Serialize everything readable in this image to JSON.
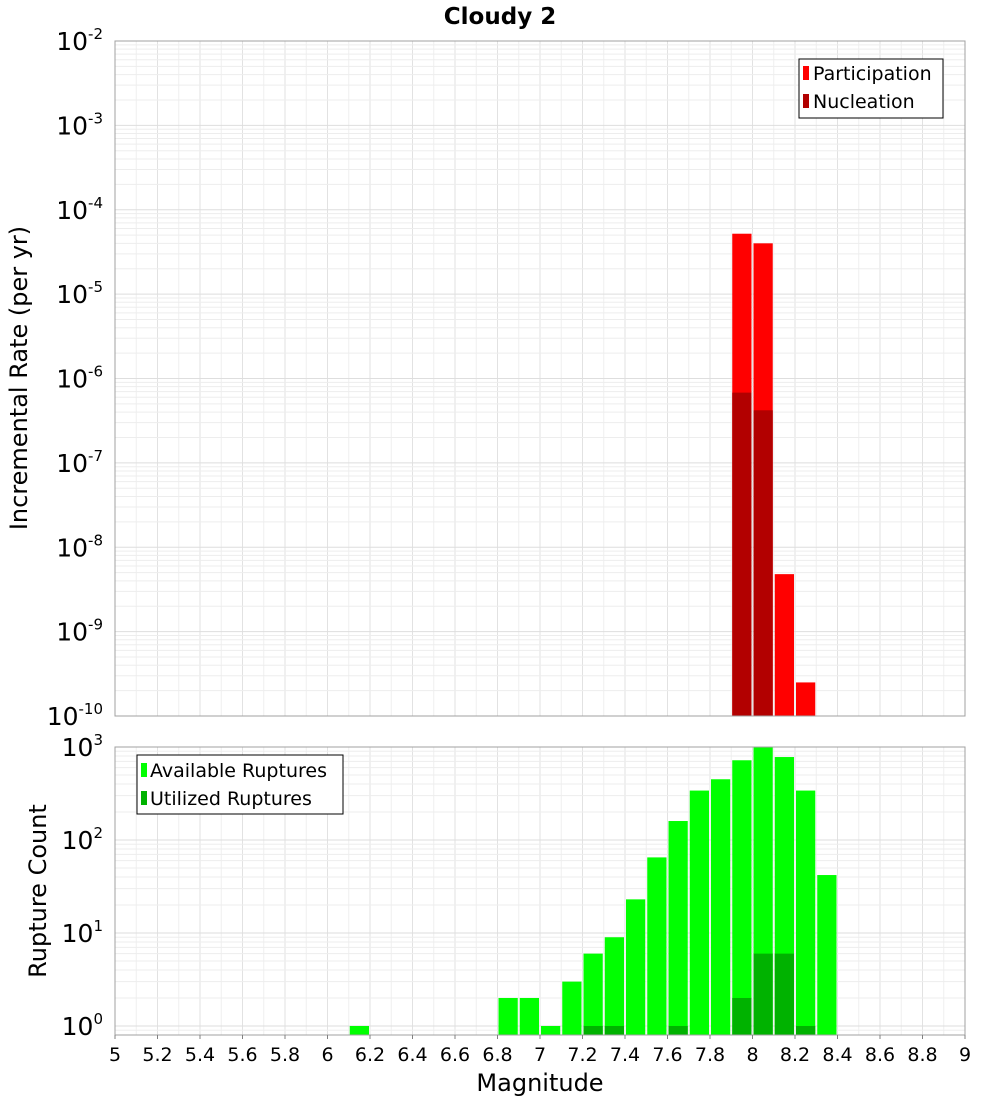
{
  "chart_data": [
    {
      "type": "bar",
      "title": "Cloudy 2",
      "ylabel": "Incremental Rate (per yr)",
      "yscale": "log",
      "ylim": [
        1e-10,
        0.01
      ],
      "xlim": [
        5,
        9
      ],
      "y_tick_exponents": [
        "-10",
        "-9",
        "-8",
        "-7",
        "-6",
        "-5",
        "-4",
        "-3",
        "-2"
      ],
      "y_tick_base": "10",
      "legend": {
        "position": "top-right"
      },
      "grid": true,
      "series": [
        {
          "name": "Participation",
          "color": "#ff0000",
          "x": [
            7.95,
            8.05,
            8.15,
            8.25
          ],
          "values": [
            5.2e-05,
            4e-05,
            4.8e-09,
            2.5e-10
          ]
        },
        {
          "name": "Nucleation",
          "color": "#b20000",
          "x": [
            7.95,
            8.05
          ],
          "values": [
            6.8e-07,
            4.2e-07
          ]
        }
      ]
    },
    {
      "type": "bar",
      "xlabel": "Magnitude",
      "ylabel": "Rupture Count",
      "yscale": "log",
      "ylim": [
        0.8,
        1000
      ],
      "xlim": [
        5,
        9
      ],
      "y_tick_exponents": [
        "0",
        "1",
        "2",
        "3"
      ],
      "y_tick_base": "10",
      "x_ticks": [
        "5",
        "5.2",
        "5.4",
        "5.6",
        "5.8",
        "6",
        "6.2",
        "6.4",
        "6.6",
        "6.8",
        "7",
        "7.2",
        "7.4",
        "7.6",
        "7.8",
        "8",
        "8.2",
        "8.4",
        "8.6",
        "8.8",
        "9"
      ],
      "legend": {
        "position": "top-left"
      },
      "grid": true,
      "series": [
        {
          "name": "Available Ruptures",
          "color": "#00ff00",
          "x": [
            6.15,
            6.85,
            6.95,
            7.05,
            7.15,
            7.25,
            7.35,
            7.45,
            7.55,
            7.65,
            7.75,
            7.85,
            7.95,
            8.05,
            8.15,
            8.25,
            8.35
          ],
          "values": [
            1,
            2,
            2,
            1,
            3,
            6,
            9,
            23,
            65,
            160,
            340,
            450,
            720,
            1000,
            780,
            340,
            42
          ]
        },
        {
          "name": "Utilized Ruptures",
          "color": "#00b200",
          "x": [
            7.25,
            7.35,
            7.65,
            7.95,
            8.05,
            8.15,
            8.25
          ],
          "values": [
            1,
            1,
            1,
            2,
            6,
            6,
            1
          ]
        }
      ]
    }
  ]
}
